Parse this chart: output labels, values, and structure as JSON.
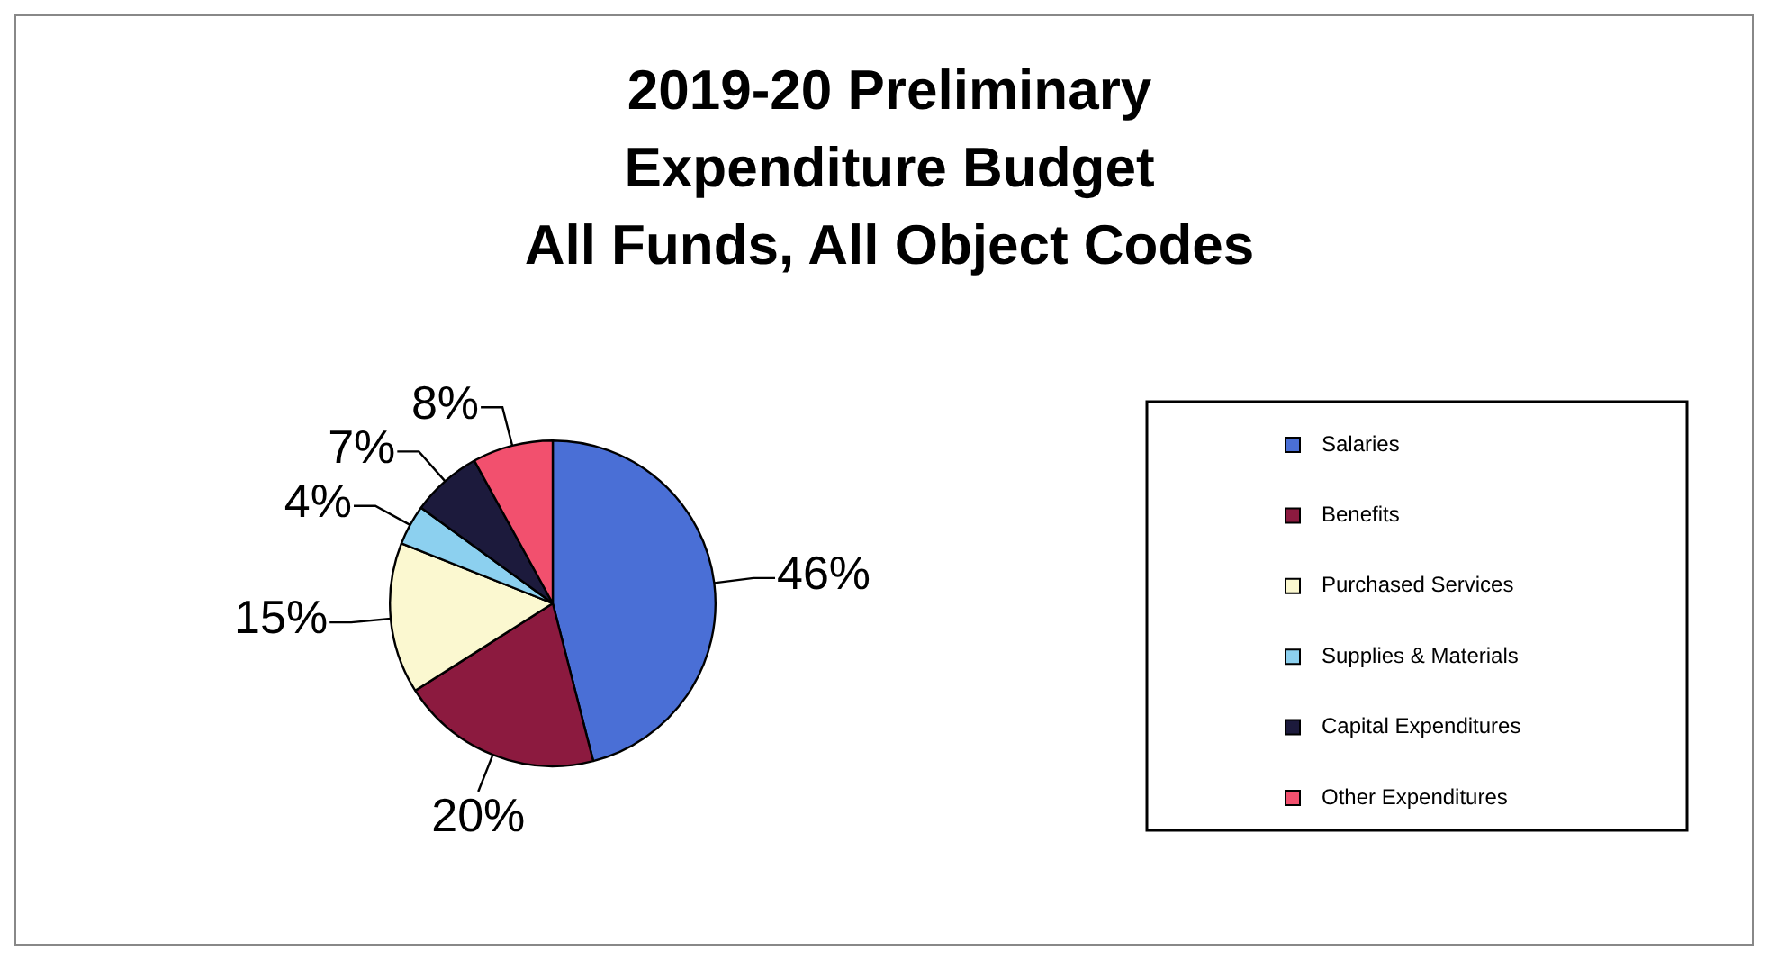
{
  "chart_data": {
    "type": "pie",
    "title": "2019-20 Preliminary\nExpenditure Budget\nAll Funds, All Object Codes",
    "categories": [
      "Salaries",
      "Benefits",
      "Purchased Services",
      "Supplies & Materials",
      "Capital Expenditures",
      "Other Expenditures"
    ],
    "values": [
      46,
      20,
      15,
      4,
      7,
      8
    ],
    "value_labels": [
      "46%",
      "20%",
      "15%",
      "4%",
      "7%",
      "8%"
    ],
    "colors": [
      "#4a6fd6",
      "#8c1a3f",
      "#fbf8d0",
      "#8cd0ef",
      "#1c1a3c",
      "#f2506e"
    ],
    "legend": "right"
  }
}
